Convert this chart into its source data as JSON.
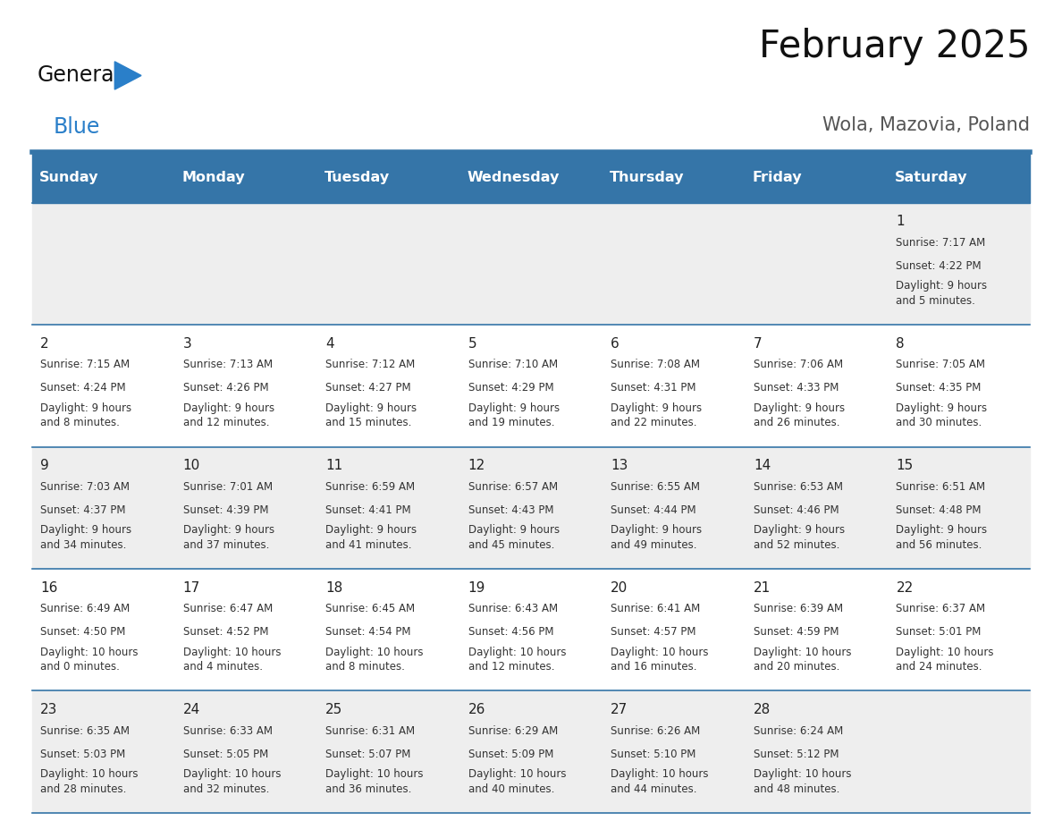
{
  "title": "February 2025",
  "subtitle": "Wola, Mazovia, Poland",
  "days_of_week": [
    "Sunday",
    "Monday",
    "Tuesday",
    "Wednesday",
    "Thursday",
    "Friday",
    "Saturday"
  ],
  "header_bg": "#3575a8",
  "header_text_color": "#ffffff",
  "cell_bg_odd": "#eeeeee",
  "cell_bg_even": "#ffffff",
  "divider_color": "#3575a8",
  "grid_line_color": "#3575a8",
  "text_color": "#333333",
  "day_number_color": "#222222",
  "title_color": "#111111",
  "subtitle_color": "#555555",
  "logo_general_color": "#111111",
  "logo_blue_color": "#2a7fc9",
  "calendar_data": [
    {
      "day": 1,
      "col": 6,
      "row": 0,
      "sunrise": "7:17 AM",
      "sunset": "4:22 PM",
      "daylight": "9 hours\nand 5 minutes."
    },
    {
      "day": 2,
      "col": 0,
      "row": 1,
      "sunrise": "7:15 AM",
      "sunset": "4:24 PM",
      "daylight": "9 hours\nand 8 minutes."
    },
    {
      "day": 3,
      "col": 1,
      "row": 1,
      "sunrise": "7:13 AM",
      "sunset": "4:26 PM",
      "daylight": "9 hours\nand 12 minutes."
    },
    {
      "day": 4,
      "col": 2,
      "row": 1,
      "sunrise": "7:12 AM",
      "sunset": "4:27 PM",
      "daylight": "9 hours\nand 15 minutes."
    },
    {
      "day": 5,
      "col": 3,
      "row": 1,
      "sunrise": "7:10 AM",
      "sunset": "4:29 PM",
      "daylight": "9 hours\nand 19 minutes."
    },
    {
      "day": 6,
      "col": 4,
      "row": 1,
      "sunrise": "7:08 AM",
      "sunset": "4:31 PM",
      "daylight": "9 hours\nand 22 minutes."
    },
    {
      "day": 7,
      "col": 5,
      "row": 1,
      "sunrise": "7:06 AM",
      "sunset": "4:33 PM",
      "daylight": "9 hours\nand 26 minutes."
    },
    {
      "day": 8,
      "col": 6,
      "row": 1,
      "sunrise": "7:05 AM",
      "sunset": "4:35 PM",
      "daylight": "9 hours\nand 30 minutes."
    },
    {
      "day": 9,
      "col": 0,
      "row": 2,
      "sunrise": "7:03 AM",
      "sunset": "4:37 PM",
      "daylight": "9 hours\nand 34 minutes."
    },
    {
      "day": 10,
      "col": 1,
      "row": 2,
      "sunrise": "7:01 AM",
      "sunset": "4:39 PM",
      "daylight": "9 hours\nand 37 minutes."
    },
    {
      "day": 11,
      "col": 2,
      "row": 2,
      "sunrise": "6:59 AM",
      "sunset": "4:41 PM",
      "daylight": "9 hours\nand 41 minutes."
    },
    {
      "day": 12,
      "col": 3,
      "row": 2,
      "sunrise": "6:57 AM",
      "sunset": "4:43 PM",
      "daylight": "9 hours\nand 45 minutes."
    },
    {
      "day": 13,
      "col": 4,
      "row": 2,
      "sunrise": "6:55 AM",
      "sunset": "4:44 PM",
      "daylight": "9 hours\nand 49 minutes."
    },
    {
      "day": 14,
      "col": 5,
      "row": 2,
      "sunrise": "6:53 AM",
      "sunset": "4:46 PM",
      "daylight": "9 hours\nand 52 minutes."
    },
    {
      "day": 15,
      "col": 6,
      "row": 2,
      "sunrise": "6:51 AM",
      "sunset": "4:48 PM",
      "daylight": "9 hours\nand 56 minutes."
    },
    {
      "day": 16,
      "col": 0,
      "row": 3,
      "sunrise": "6:49 AM",
      "sunset": "4:50 PM",
      "daylight": "10 hours\nand 0 minutes."
    },
    {
      "day": 17,
      "col": 1,
      "row": 3,
      "sunrise": "6:47 AM",
      "sunset": "4:52 PM",
      "daylight": "10 hours\nand 4 minutes."
    },
    {
      "day": 18,
      "col": 2,
      "row": 3,
      "sunrise": "6:45 AM",
      "sunset": "4:54 PM",
      "daylight": "10 hours\nand 8 minutes."
    },
    {
      "day": 19,
      "col": 3,
      "row": 3,
      "sunrise": "6:43 AM",
      "sunset": "4:56 PM",
      "daylight": "10 hours\nand 12 minutes."
    },
    {
      "day": 20,
      "col": 4,
      "row": 3,
      "sunrise": "6:41 AM",
      "sunset": "4:57 PM",
      "daylight": "10 hours\nand 16 minutes."
    },
    {
      "day": 21,
      "col": 5,
      "row": 3,
      "sunrise": "6:39 AM",
      "sunset": "4:59 PM",
      "daylight": "10 hours\nand 20 minutes."
    },
    {
      "day": 22,
      "col": 6,
      "row": 3,
      "sunrise": "6:37 AM",
      "sunset": "5:01 PM",
      "daylight": "10 hours\nand 24 minutes."
    },
    {
      "day": 23,
      "col": 0,
      "row": 4,
      "sunrise": "6:35 AM",
      "sunset": "5:03 PM",
      "daylight": "10 hours\nand 28 minutes."
    },
    {
      "day": 24,
      "col": 1,
      "row": 4,
      "sunrise": "6:33 AM",
      "sunset": "5:05 PM",
      "daylight": "10 hours\nand 32 minutes."
    },
    {
      "day": 25,
      "col": 2,
      "row": 4,
      "sunrise": "6:31 AM",
      "sunset": "5:07 PM",
      "daylight": "10 hours\nand 36 minutes."
    },
    {
      "day": 26,
      "col": 3,
      "row": 4,
      "sunrise": "6:29 AM",
      "sunset": "5:09 PM",
      "daylight": "10 hours\nand 40 minutes."
    },
    {
      "day": 27,
      "col": 4,
      "row": 4,
      "sunrise": "6:26 AM",
      "sunset": "5:10 PM",
      "daylight": "10 hours\nand 44 minutes."
    },
    {
      "day": 28,
      "col": 5,
      "row": 4,
      "sunrise": "6:24 AM",
      "sunset": "5:12 PM",
      "daylight": "10 hours\nand 48 minutes."
    }
  ],
  "num_rows": 5,
  "num_cols": 7,
  "figsize": [
    11.88,
    9.18
  ],
  "dpi": 100
}
